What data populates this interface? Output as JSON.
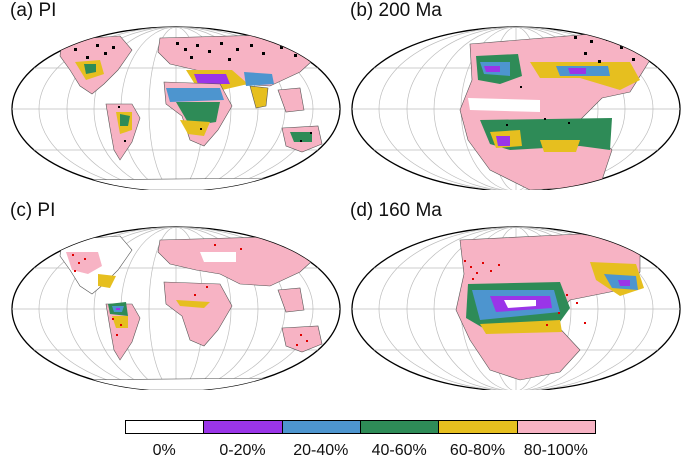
{
  "panels": [
    {
      "title": "(a) PI"
    },
    {
      "title": "(b) 200 Ma"
    },
    {
      "title": "(c) PI"
    },
    {
      "title": "(d) 160 Ma"
    }
  ],
  "legend": {
    "items": [
      {
        "label": "0%",
        "color": "#ffffff"
      },
      {
        "label": "0-20%",
        "color": "#9a35e8"
      },
      {
        "label": "20-40%",
        "color": "#4d95cf"
      },
      {
        "label": "40-60%",
        "color": "#2e8b57"
      },
      {
        "label": "60-80%",
        "color": "#e6bf1f"
      },
      {
        "label": "80-100%",
        "color": "#f7b3c4"
      }
    ]
  }
}
